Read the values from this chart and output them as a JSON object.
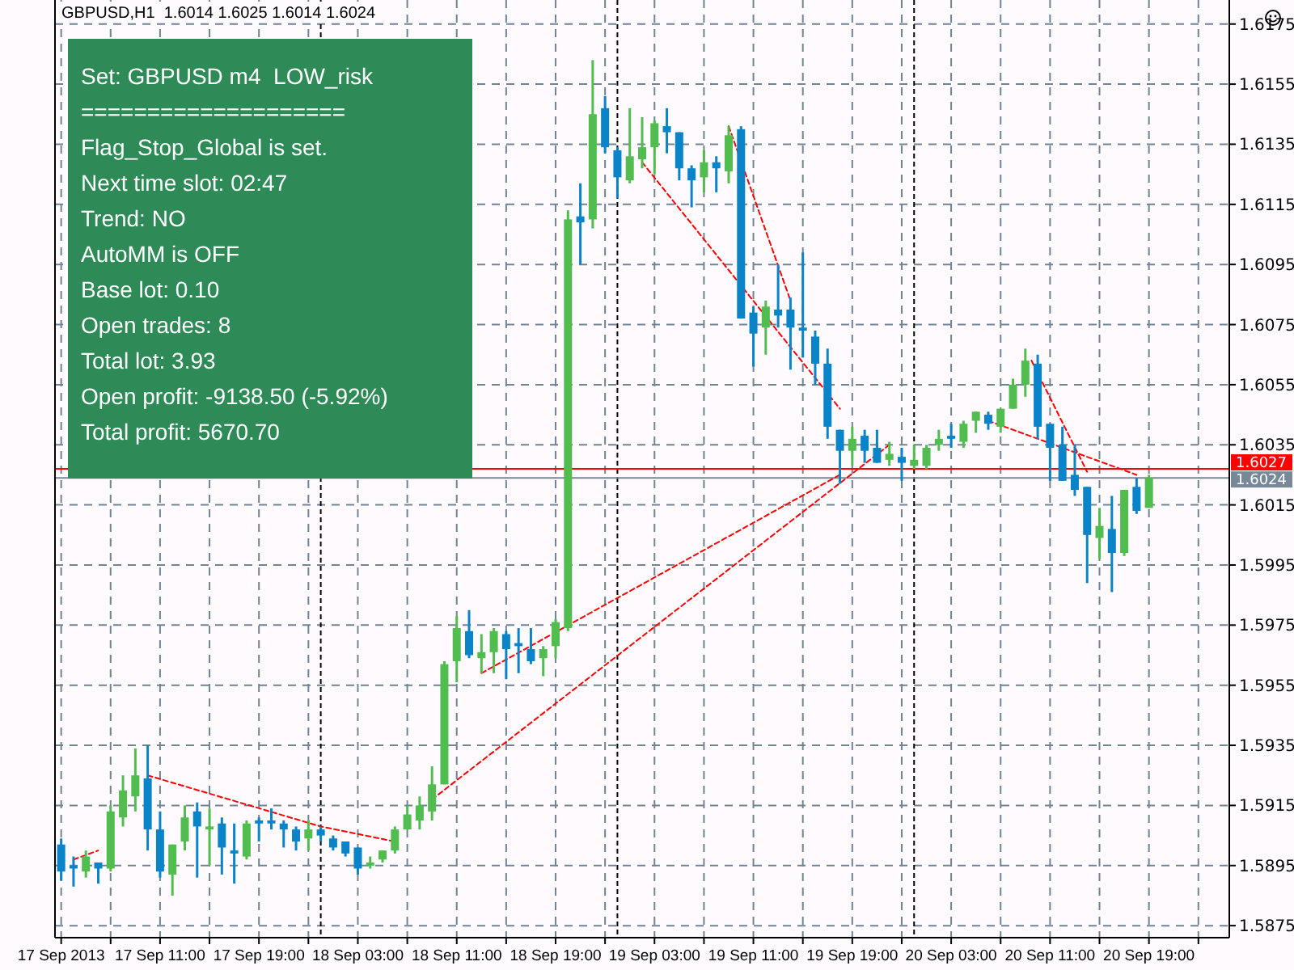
{
  "chart_data": {
    "type": "candlestick",
    "title": "GBPUSD,H1  1.6014 1.6025 1.6014 1.6024",
    "x": [
      "2013-09-17T03:00",
      "2013-09-17T04:00",
      "2013-09-17T05:00",
      "2013-09-17T06:00",
      "2013-09-17T07:00",
      "2013-09-17T08:00",
      "2013-09-17T09:00",
      "2013-09-17T10:00",
      "2013-09-17T11:00",
      "2013-09-17T12:00",
      "2013-09-17T13:00",
      "2013-09-17T14:00",
      "2013-09-17T15:00",
      "2013-09-17T16:00",
      "2013-09-17T17:00",
      "2013-09-17T18:00",
      "2013-09-17T19:00",
      "2013-09-17T20:00",
      "2013-09-17T21:00",
      "2013-09-17T22:00",
      "2013-09-17T23:00",
      "2013-09-18T00:00",
      "2013-09-18T01:00",
      "2013-09-18T02:00",
      "2013-09-18T03:00",
      "2013-09-18T04:00",
      "2013-09-18T05:00",
      "2013-09-18T06:00",
      "2013-09-18T07:00",
      "2013-09-18T08:00",
      "2013-09-18T09:00",
      "2013-09-18T10:00",
      "2013-09-18T11:00",
      "2013-09-18T12:00",
      "2013-09-18T13:00",
      "2013-09-18T14:00",
      "2013-09-18T15:00",
      "2013-09-18T16:00",
      "2013-09-18T17:00",
      "2013-09-18T18:00",
      "2013-09-18T19:00",
      "2013-09-18T20:00",
      "2013-09-18T21:00",
      "2013-09-18T22:00",
      "2013-09-18T23:00",
      "2013-09-19T00:00",
      "2013-09-19T01:00",
      "2013-09-19T02:00",
      "2013-09-19T03:00",
      "2013-09-19T04:00",
      "2013-09-19T05:00",
      "2013-09-19T06:00",
      "2013-09-19T07:00",
      "2013-09-19T08:00",
      "2013-09-19T09:00",
      "2013-09-19T10:00",
      "2013-09-19T11:00",
      "2013-09-19T12:00",
      "2013-09-19T13:00",
      "2013-09-19T14:00",
      "2013-09-19T15:00",
      "2013-09-19T16:00",
      "2013-09-19T17:00",
      "2013-09-19T18:00",
      "2013-09-19T19:00",
      "2013-09-19T20:00",
      "2013-09-19T21:00",
      "2013-09-19T22:00",
      "2013-09-19T23:00",
      "2013-09-20T00:00",
      "2013-09-20T01:00",
      "2013-09-20T02:00",
      "2013-09-20T03:00",
      "2013-09-20T04:00",
      "2013-09-20T05:00",
      "2013-09-20T06:00",
      "2013-09-20T07:00",
      "2013-09-20T08:00",
      "2013-09-20T09:00",
      "2013-09-20T10:00",
      "2013-09-20T11:00",
      "2013-09-20T12:00",
      "2013-09-20T13:00",
      "2013-09-20T14:00",
      "2013-09-20T15:00",
      "2013-09-20T16:00",
      "2013-09-20T17:00",
      "2013-09-20T18:00",
      "2013-09-20T19:00"
    ],
    "ohlc": [
      [
        1.5902,
        1.5904,
        1.589,
        1.5893
      ],
      [
        1.5895,
        1.5898,
        1.5888,
        1.5894
      ],
      [
        1.5893,
        1.59,
        1.5891,
        1.5898
      ],
      [
        1.5896,
        1.5896,
        1.5889,
        1.5894
      ],
      [
        1.5894,
        1.5915,
        1.5893,
        1.5913
      ],
      [
        1.5911,
        1.5925,
        1.5908,
        1.592
      ],
      [
        1.5918,
        1.5934,
        1.5913,
        1.5925
      ],
      [
        1.5924,
        1.5935,
        1.59,
        1.5907
      ],
      [
        1.5907,
        1.5913,
        1.5891,
        1.5893
      ],
      [
        1.5892,
        1.5902,
        1.5885,
        1.5902
      ],
      [
        1.5903,
        1.5915,
        1.59,
        1.5911
      ],
      [
        1.5913,
        1.5916,
        1.5891,
        1.5908
      ],
      [
        1.5907,
        1.5914,
        1.5895,
        1.5908
      ],
      [
        1.5909,
        1.5911,
        1.5892,
        1.5901
      ],
      [
        1.59,
        1.5909,
        1.5889,
        1.5899
      ],
      [
        1.5898,
        1.591,
        1.5897,
        1.5909
      ],
      [
        1.591,
        1.5911,
        1.5903,
        1.5909
      ],
      [
        1.591,
        1.5914,
        1.5907,
        1.5909
      ],
      [
        1.5909,
        1.591,
        1.5901,
        1.5907
      ],
      [
        1.5907,
        1.5908,
        1.59,
        1.5903
      ],
      [
        1.5904,
        1.591,
        1.59,
        1.5907
      ],
      [
        1.5907,
        1.5908,
        1.5903,
        1.5905
      ],
      [
        1.5904,
        1.5905,
        1.59,
        1.5901
      ],
      [
        1.5903,
        1.5903,
        1.5898,
        1.5899
      ],
      [
        1.5901,
        1.5901,
        1.5892,
        1.5894
      ],
      [
        1.5895,
        1.5898,
        1.5894,
        1.5896
      ],
      [
        1.5897,
        1.59,
        1.5896,
        1.59
      ],
      [
        1.59,
        1.5908,
        1.5899,
        1.5907
      ],
      [
        1.5907,
        1.5915,
        1.5907,
        1.5912
      ],
      [
        1.591,
        1.5918,
        1.5907,
        1.5915
      ],
      [
        1.5913,
        1.5928,
        1.591,
        1.5922
      ],
      [
        1.5922,
        1.5963,
        1.5922,
        1.5962
      ],
      [
        1.5963,
        1.5978,
        1.5956,
        1.5974
      ],
      [
        1.5973,
        1.598,
        1.5964,
        1.5965
      ],
      [
        1.5964,
        1.5972,
        1.5959,
        1.5966
      ],
      [
        1.5966,
        1.5974,
        1.5959,
        1.5973
      ],
      [
        1.5972,
        1.5973,
        1.5957,
        1.5967
      ],
      [
        1.5969,
        1.5974,
        1.5959,
        1.5968
      ],
      [
        1.5967,
        1.5974,
        1.5962,
        1.5963
      ],
      [
        1.5964,
        1.5968,
        1.5958,
        1.5967
      ],
      [
        1.5968,
        1.5977,
        1.5964,
        1.5976
      ],
      [
        1.5974,
        1.6113,
        1.5973,
        1.611
      ],
      [
        1.6111,
        1.6122,
        1.6095,
        1.6109
      ],
      [
        1.611,
        1.6163,
        1.6107,
        1.6145
      ],
      [
        1.6147,
        1.6151,
        1.6132,
        1.6134
      ],
      [
        1.6133,
        1.6134,
        1.6117,
        1.6124
      ],
      [
        1.6123,
        1.6147,
        1.6122,
        1.6131
      ],
      [
        1.613,
        1.6144,
        1.6127,
        1.6134
      ],
      [
        1.6134,
        1.6143,
        1.6125,
        1.6142
      ],
      [
        1.6141,
        1.6147,
        1.6132,
        1.6139
      ],
      [
        1.6139,
        1.6139,
        1.6123,
        1.6127
      ],
      [
        1.6127,
        1.6128,
        1.6114,
        1.6123
      ],
      [
        1.6124,
        1.6133,
        1.6119,
        1.6129
      ],
      [
        1.6129,
        1.6131,
        1.6119,
        1.6127
      ],
      [
        1.6126,
        1.6141,
        1.6122,
        1.6138
      ],
      [
        1.614,
        1.6141,
        1.6077,
        1.6077
      ],
      [
        1.6079,
        1.6081,
        1.6061,
        1.6072
      ],
      [
        1.6074,
        1.6083,
        1.6065,
        1.6081
      ],
      [
        1.608,
        1.6095,
        1.6074,
        1.6078
      ],
      [
        1.608,
        1.6084,
        1.606,
        1.6074
      ],
      [
        1.6074,
        1.6099,
        1.6064,
        1.6073
      ],
      [
        1.6071,
        1.6073,
        1.6055,
        1.6062
      ],
      [
        1.6062,
        1.6067,
        1.6037,
        1.6041
      ],
      [
        1.604,
        1.604,
        1.6022,
        1.6033
      ],
      [
        1.6033,
        1.6041,
        1.6028,
        1.6037
      ],
      [
        1.6038,
        1.604,
        1.6029,
        1.6033
      ],
      [
        1.6034,
        1.604,
        1.6029,
        1.6029
      ],
      [
        1.603,
        1.6036,
        1.6028,
        1.6032
      ],
      [
        1.6031,
        1.6034,
        1.6023,
        1.6029
      ],
      [
        1.6028,
        1.6035,
        1.6027,
        1.603
      ],
      [
        1.6028,
        1.6035,
        1.6027,
        1.6034
      ],
      [
        1.6035,
        1.604,
        1.6033,
        1.6037
      ],
      [
        1.6038,
        1.6042,
        1.6034,
        1.6037
      ],
      [
        1.6036,
        1.6043,
        1.6034,
        1.6042
      ],
      [
        1.6043,
        1.6046,
        1.6039,
        1.6046
      ],
      [
        1.6045,
        1.6046,
        1.604,
        1.6042
      ],
      [
        1.6041,
        1.6047,
        1.6039,
        1.6047
      ],
      [
        1.6047,
        1.6057,
        1.6047,
        1.6055
      ],
      [
        1.6055,
        1.6067,
        1.6051,
        1.6063
      ],
      [
        1.6062,
        1.6065,
        1.6037,
        1.6041
      ],
      [
        1.6042,
        1.6042,
        1.6023,
        1.6034
      ],
      [
        1.6035,
        1.6041,
        1.6023,
        1.6023
      ],
      [
        1.6025,
        1.6035,
        1.6018,
        1.602
      ],
      [
        1.6021,
        1.6021,
        1.5989,
        1.6005
      ],
      [
        1.6004,
        1.6014,
        1.5997,
        1.6008
      ],
      [
        1.6007,
        1.6018,
        1.5986,
        1.5999
      ],
      [
        1.5999,
        1.602,
        1.5998,
        1.602
      ],
      [
        1.6021,
        1.6024,
        1.6012,
        1.6013
      ],
      [
        1.6014,
        1.6025,
        1.6014,
        1.6024
      ]
    ],
    "colors": [
      "#0a84c8",
      "#0a84c8",
      "#52bd4f",
      "#0a84c8",
      "#52bd4f",
      "#52bd4f",
      "#52bd4f",
      "#0a84c8",
      "#0a84c8",
      "#52bd4f",
      "#52bd4f",
      "#0a84c8",
      "#52bd4f",
      "#0a84c8",
      "#0a84c8",
      "#52bd4f",
      "#0a84c8",
      "#0a84c8",
      "#0a84c8",
      "#0a84c8",
      "#52bd4f",
      "#0a84c8",
      "#0a84c8",
      "#0a84c8",
      "#0a84c8",
      "#52bd4f",
      "#52bd4f",
      "#52bd4f",
      "#52bd4f",
      "#52bd4f",
      "#52bd4f",
      "#52bd4f",
      "#52bd4f",
      "#0a84c8",
      "#52bd4f",
      "#52bd4f",
      "#0a84c8",
      "#0a84c8",
      "#0a84c8",
      "#52bd4f",
      "#52bd4f",
      "#52bd4f",
      "#0a84c8",
      "#52bd4f",
      "#0a84c8",
      "#0a84c8",
      "#52bd4f",
      "#52bd4f",
      "#52bd4f",
      "#0a84c8",
      "#0a84c8",
      "#0a84c8",
      "#52bd4f",
      "#0a84c8",
      "#52bd4f",
      "#0a84c8",
      "#0a84c8",
      "#52bd4f",
      "#0a84c8",
      "#0a84c8",
      "#0a84c8",
      "#0a84c8",
      "#0a84c8",
      "#0a84c8",
      "#52bd4f",
      "#0a84c8",
      "#0a84c8",
      "#52bd4f",
      "#0a84c8",
      "#52bd4f",
      "#52bd4f",
      "#52bd4f",
      "#0a84c8",
      "#52bd4f",
      "#52bd4f",
      "#0a84c8",
      "#52bd4f",
      "#52bd4f",
      "#52bd4f",
      "#0a84c8",
      "#0a84c8",
      "#0a84c8",
      "#0a84c8",
      "#0a84c8",
      "#52bd4f",
      "#0a84c8",
      "#52bd4f",
      "#0a84c8",
      "#52bd4f"
    ],
    "series": [
      {
        "type": "line",
        "color": "#ff0000",
        "line_style": "dashed",
        "x": [
          "2013-09-17T04:00",
          "2013-09-17T06:00"
        ],
        "values": [
          1.5897,
          1.59
        ]
      },
      {
        "type": "line",
        "color": "#ff0000",
        "line_style": "dashed",
        "x": [
          "2013-09-17T10:00",
          "2013-09-18T00:00",
          "2013-09-18T06:00"
        ],
        "values": [
          1.5925,
          1.5908,
          1.5903
        ]
      },
      {
        "type": "line",
        "color": "#ff0000",
        "line_style": "dashed",
        "x": [
          "2013-09-18T09:00",
          "2013-09-19T22:00"
        ],
        "values": [
          1.5917,
          1.6035
        ]
      },
      {
        "type": "line",
        "color": "#ff0000",
        "line_style": "dashed",
        "x": [
          "2013-09-18T13:00",
          "2013-09-19T18:00"
        ],
        "values": [
          1.5959,
          1.6025
        ]
      },
      {
        "type": "line",
        "color": "#ff0000",
        "line_style": "dashed",
        "x": [
          "2013-09-19T02:00",
          "2013-09-19T18:00"
        ],
        "values": [
          1.6129,
          1.6047
        ]
      },
      {
        "type": "line",
        "color": "#ff0000",
        "line_style": "dashed",
        "x": [
          "2013-09-19T09:00",
          "2013-09-19T14:00"
        ],
        "values": [
          1.6141,
          1.6083
        ]
      },
      {
        "type": "line",
        "color": "#ff0000",
        "line_style": "dashed",
        "x": [
          "2013-09-20T09:30",
          "2013-09-20T14:00"
        ],
        "values": [
          1.6063,
          1.6026
        ]
      },
      {
        "type": "line",
        "color": "#ff0000",
        "line_style": "dashed",
        "x": [
          "2013-09-20T06:00",
          "2013-09-20T18:00"
        ],
        "values": [
          1.6043,
          1.6025
        ]
      }
    ],
    "xlim": [
      "2013-09-17T02:30",
      "2013-09-21T01:30"
    ],
    "xticks": [
      {
        "value": "2013-09-17T03:00",
        "label": "17 Sep 2013"
      },
      {
        "value": "2013-09-17T07:00",
        "label": null
      },
      {
        "value": "2013-09-17T11:00",
        "label": "17 Sep 11:00"
      },
      {
        "value": "2013-09-17T15:00",
        "label": null
      },
      {
        "value": "2013-09-17T19:00",
        "label": "17 Sep 19:00"
      },
      {
        "value": "2013-09-17T23:00",
        "label": null
      },
      {
        "value": "2013-09-18T03:00",
        "label": "18 Sep 03:00"
      },
      {
        "value": "2013-09-18T07:00",
        "label": null
      },
      {
        "value": "2013-09-18T11:00",
        "label": "18 Sep 11:00"
      },
      {
        "value": "2013-09-18T15:00",
        "label": null
      },
      {
        "value": "2013-09-18T19:00",
        "label": "18 Sep 19:00"
      },
      {
        "value": "2013-09-18T23:00",
        "label": null
      },
      {
        "value": "2013-09-19T03:00",
        "label": "19 Sep 03:00"
      },
      {
        "value": "2013-09-19T07:00",
        "label": null
      },
      {
        "value": "2013-09-19T11:00",
        "label": "19 Sep 11:00"
      },
      {
        "value": "2013-09-19T15:00",
        "label": null
      },
      {
        "value": "2013-09-19T19:00",
        "label": "19 Sep 19:00"
      },
      {
        "value": "2013-09-19T23:00",
        "label": null
      },
      {
        "value": "2013-09-20T03:00",
        "label": "20 Sep 03:00"
      },
      {
        "value": "2013-09-20T07:00",
        "label": null
      },
      {
        "value": "2013-09-20T11:00",
        "label": "20 Sep 11:00"
      },
      {
        "value": "2013-09-20T15:00",
        "label": null
      },
      {
        "value": "2013-09-20T19:00",
        "label": "20 Sep 19:00"
      },
      {
        "value": "2013-09-20T23:00",
        "label": null
      }
    ],
    "ylim": [
      1.5871,
      1.6183
    ],
    "yticks": [
      {
        "value": 1.6175,
        "label": "1.6175"
      },
      {
        "value": 1.6155,
        "label": "1.6155"
      },
      {
        "value": 1.6135,
        "label": "1.6135"
      },
      {
        "value": 1.6115,
        "label": "1.6115"
      },
      {
        "value": 1.6095,
        "label": "1.6095"
      },
      {
        "value": 1.6075,
        "label": "1.6075"
      },
      {
        "value": 1.6055,
        "label": "1.6055"
      },
      {
        "value": 1.6035,
        "label": "1.6035"
      },
      {
        "value": 1.6015,
        "label": "1.6015"
      },
      {
        "value": 1.5995,
        "label": "1.5995"
      },
      {
        "value": 1.5975,
        "label": "1.5975"
      },
      {
        "value": 1.5955,
        "label": "1.5955"
      },
      {
        "value": 1.5935,
        "label": "1.5935"
      },
      {
        "value": 1.5915,
        "label": "1.5915"
      },
      {
        "value": 1.5895,
        "label": "1.5895"
      },
      {
        "value": 1.5875,
        "label": "1.5875"
      }
    ],
    "grid": true,
    "ref_lines": [
      {
        "axis": "x",
        "value": "2013-09-18T00:00",
        "label": null,
        "color": "#000000",
        "line_style": "dashed"
      },
      {
        "axis": "x",
        "value": "2013-09-19T00:00",
        "label": null,
        "color": "#000000",
        "line_style": "dashed"
      },
      {
        "axis": "x",
        "value": "2013-09-20T00:00",
        "label": null,
        "color": "#000000",
        "line_style": "dashed"
      },
      {
        "axis": "y",
        "value": 1.6027,
        "label": "1.6027",
        "color": "#ff0000",
        "line_style": "solid"
      },
      {
        "axis": "y",
        "value": 1.6024,
        "label": "1.6024",
        "color": "#778899",
        "line_style": "solid"
      }
    ],
    "annotations": [
      "Set: GBPUSD m4  LOW_risk",
      "====================",
      "Flag_Stop_Global is set.",
      "Next time slot: 02:47",
      "Trend: NO",
      "AutoMM is OFF",
      "Base lot: 0.10",
      "Open trades: 8",
      "Total lot: 3.93",
      "Open profit: -9138.50 (-5.92%)",
      "Total profit: 5670.70"
    ]
  }
}
